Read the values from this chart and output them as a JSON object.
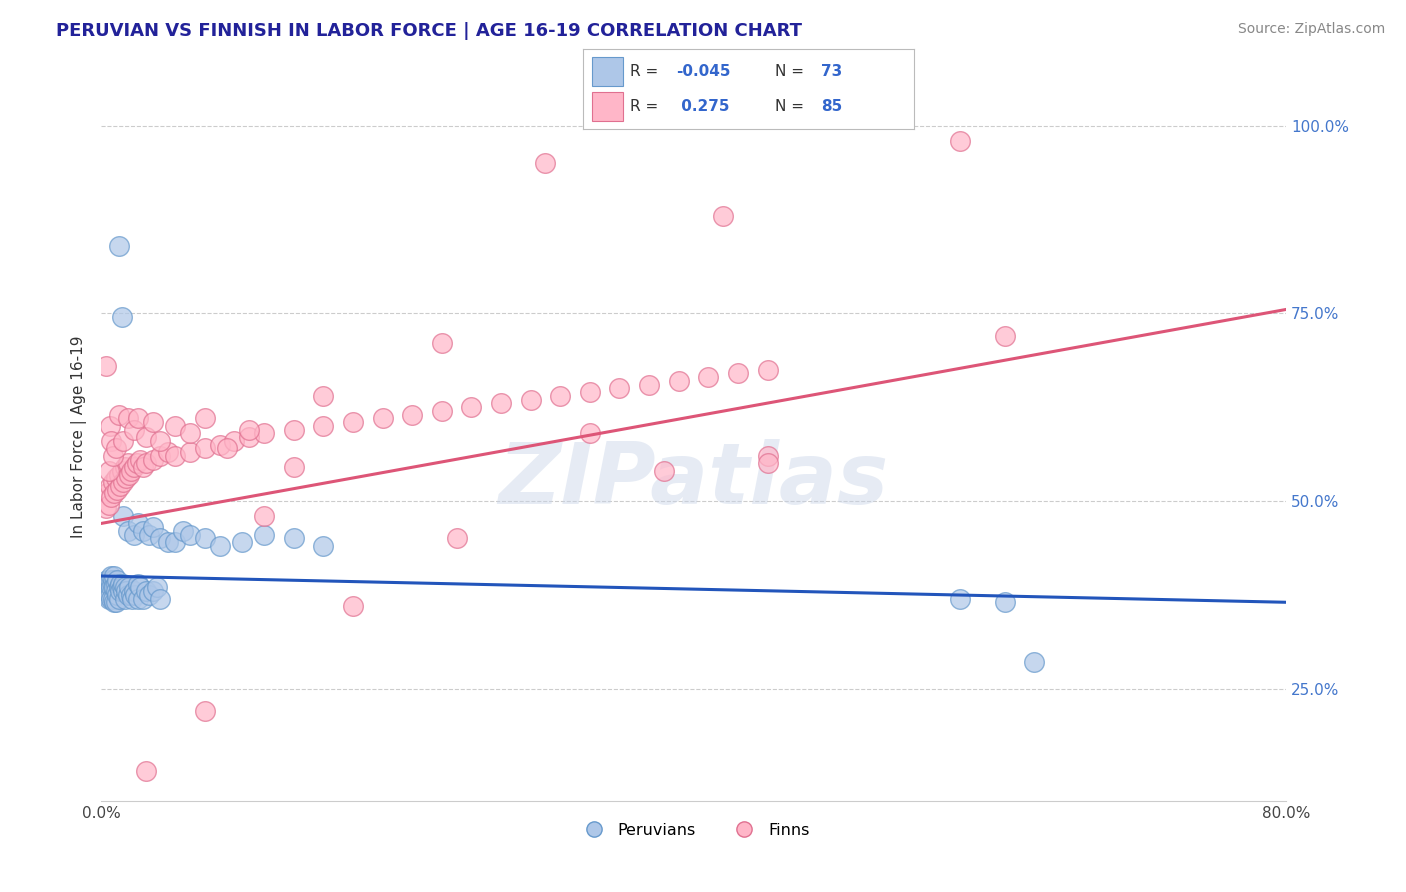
{
  "title": "PERUVIAN VS FINNISH IN LABOR FORCE | AGE 16-19 CORRELATION CHART",
  "source": "Source: ZipAtlas.com",
  "ylabel": "In Labor Force | Age 16-19",
  "xlim": [
    0.0,
    0.8
  ],
  "ylim": [
    0.1,
    1.07
  ],
  "xticks": [
    0.0,
    0.1,
    0.2,
    0.3,
    0.4,
    0.5,
    0.6,
    0.7,
    0.8
  ],
  "xtick_labels": [
    "0.0%",
    "",
    "",
    "",
    "",
    "",
    "",
    "",
    "80.0%"
  ],
  "yticks_right": [
    0.25,
    0.5,
    0.75,
    1.0
  ],
  "ytick_labels_right": [
    "25.0%",
    "50.0%",
    "75.0%",
    "100.0%"
  ],
  "peruvian_color": "#aec7e8",
  "finn_color": "#ffb6c8",
  "peruvian_edge": "#6699cc",
  "finn_edge": "#e07090",
  "trend_blue": "#2255bb",
  "trend_pink": "#dd5577",
  "background_color": "#ffffff",
  "grid_color": "#cccccc",
  "blue_trend_x": [
    0.0,
    0.8
  ],
  "blue_trend_y": [
    0.4,
    0.365
  ],
  "pink_trend_x": [
    0.0,
    0.8
  ],
  "pink_trend_y": [
    0.47,
    0.755
  ],
  "watermark": "ZIPatlas",
  "peru_x": [
    0.002,
    0.003,
    0.003,
    0.004,
    0.004,
    0.005,
    0.005,
    0.005,
    0.006,
    0.006,
    0.006,
    0.007,
    0.007,
    0.007,
    0.008,
    0.008,
    0.008,
    0.009,
    0.009,
    0.009,
    0.01,
    0.01,
    0.01,
    0.011,
    0.011,
    0.012,
    0.012,
    0.013,
    0.013,
    0.014,
    0.015,
    0.015,
    0.016,
    0.016,
    0.017,
    0.018,
    0.019,
    0.02,
    0.021,
    0.022,
    0.023,
    0.025,
    0.025,
    0.026,
    0.028,
    0.03,
    0.032,
    0.035,
    0.038,
    0.04,
    0.012,
    0.014,
    0.015,
    0.018,
    0.022,
    0.025,
    0.028,
    0.032,
    0.035,
    0.04,
    0.045,
    0.05,
    0.055,
    0.06,
    0.07,
    0.08,
    0.095,
    0.11,
    0.13,
    0.15,
    0.58,
    0.61,
    0.63
  ],
  "peru_y": [
    0.385,
    0.39,
    0.38,
    0.395,
    0.375,
    0.395,
    0.385,
    0.37,
    0.39,
    0.395,
    0.375,
    0.4,
    0.385,
    0.37,
    0.395,
    0.385,
    0.37,
    0.4,
    0.385,
    0.365,
    0.39,
    0.38,
    0.365,
    0.395,
    0.375,
    0.385,
    0.37,
    0.39,
    0.38,
    0.385,
    0.38,
    0.39,
    0.37,
    0.385,
    0.38,
    0.375,
    0.385,
    0.375,
    0.37,
    0.38,
    0.375,
    0.39,
    0.37,
    0.385,
    0.37,
    0.38,
    0.375,
    0.38,
    0.385,
    0.37,
    0.84,
    0.745,
    0.48,
    0.46,
    0.455,
    0.47,
    0.46,
    0.455,
    0.465,
    0.45,
    0.445,
    0.445,
    0.46,
    0.455,
    0.45,
    0.44,
    0.445,
    0.455,
    0.45,
    0.44,
    0.37,
    0.365,
    0.285
  ],
  "finn_x": [
    0.003,
    0.004,
    0.005,
    0.006,
    0.007,
    0.008,
    0.009,
    0.01,
    0.011,
    0.012,
    0.013,
    0.014,
    0.015,
    0.016,
    0.017,
    0.018,
    0.019,
    0.02,
    0.022,
    0.024,
    0.026,
    0.028,
    0.03,
    0.035,
    0.04,
    0.045,
    0.05,
    0.06,
    0.07,
    0.08,
    0.09,
    0.1,
    0.11,
    0.13,
    0.15,
    0.17,
    0.19,
    0.21,
    0.23,
    0.25,
    0.27,
    0.29,
    0.31,
    0.33,
    0.35,
    0.37,
    0.39,
    0.41,
    0.43,
    0.45,
    0.003,
    0.005,
    0.006,
    0.007,
    0.008,
    0.01,
    0.012,
    0.015,
    0.018,
    0.022,
    0.025,
    0.03,
    0.035,
    0.04,
    0.05,
    0.06,
    0.07,
    0.085,
    0.1,
    0.13,
    0.33,
    0.45,
    0.3,
    0.42,
    0.23,
    0.58,
    0.15,
    0.07,
    0.38,
    0.11,
    0.24,
    0.45,
    0.17,
    0.61,
    0.03
  ],
  "finn_y": [
    0.49,
    0.51,
    0.495,
    0.52,
    0.505,
    0.525,
    0.51,
    0.53,
    0.515,
    0.535,
    0.52,
    0.54,
    0.525,
    0.545,
    0.53,
    0.55,
    0.535,
    0.54,
    0.545,
    0.55,
    0.555,
    0.545,
    0.55,
    0.555,
    0.56,
    0.565,
    0.56,
    0.565,
    0.57,
    0.575,
    0.58,
    0.585,
    0.59,
    0.595,
    0.6,
    0.605,
    0.61,
    0.615,
    0.62,
    0.625,
    0.63,
    0.635,
    0.64,
    0.645,
    0.65,
    0.655,
    0.66,
    0.665,
    0.67,
    0.675,
    0.68,
    0.54,
    0.6,
    0.58,
    0.56,
    0.57,
    0.615,
    0.58,
    0.61,
    0.595,
    0.61,
    0.585,
    0.605,
    0.58,
    0.6,
    0.59,
    0.61,
    0.57,
    0.595,
    0.545,
    0.59,
    0.56,
    0.95,
    0.88,
    0.71,
    0.98,
    0.64,
    0.22,
    0.54,
    0.48,
    0.45,
    0.55,
    0.36,
    0.72,
    0.14
  ]
}
